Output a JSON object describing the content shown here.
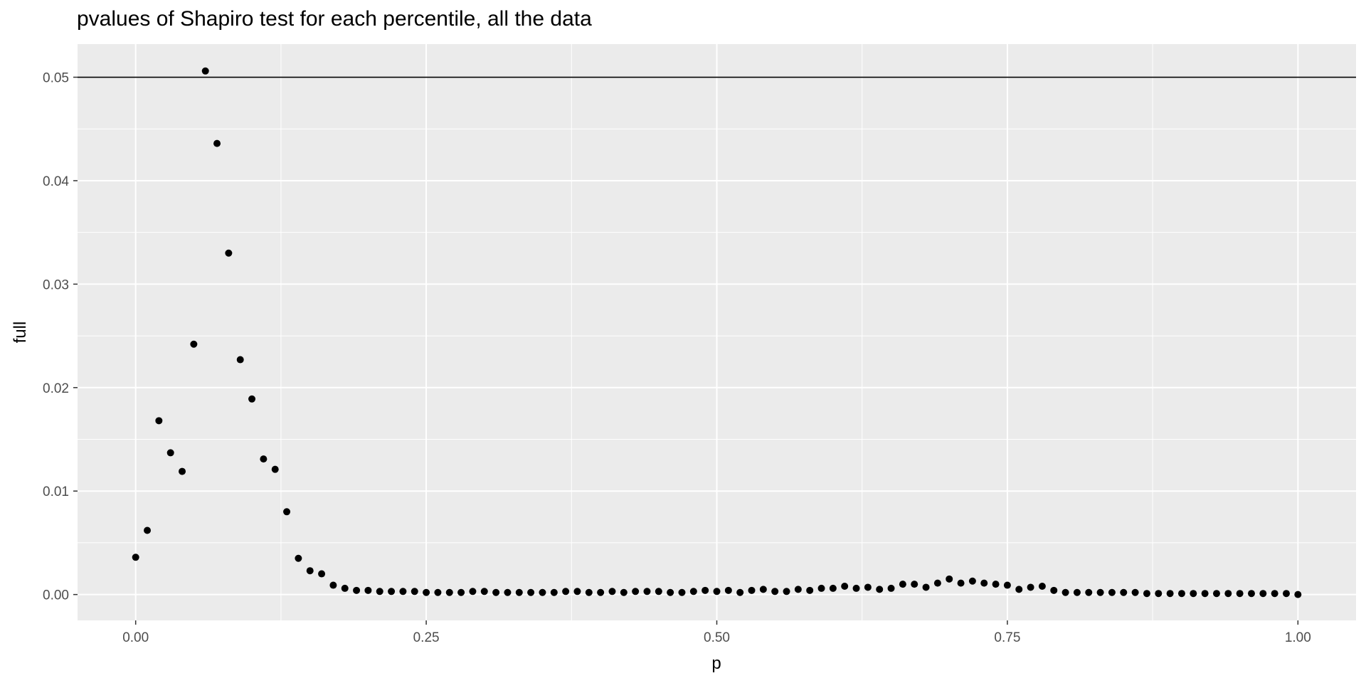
{
  "chart_data": {
    "type": "scatter",
    "title": "pvalues of Shapiro test for each percentile, all the data",
    "xlabel": "p",
    "ylabel": "full",
    "xlim": [
      -0.05,
      1.05
    ],
    "ylim": [
      -0.0025,
      0.0532
    ],
    "x_ticks": [
      0.0,
      0.25,
      0.5,
      0.75,
      1.0
    ],
    "x_tick_labels": [
      "0.00",
      "0.25",
      "0.50",
      "0.75",
      "1.00"
    ],
    "y_ticks": [
      0.0,
      0.01,
      0.02,
      0.03,
      0.04,
      0.05
    ],
    "y_tick_labels": [
      "0.00",
      "0.01",
      "0.02",
      "0.03",
      "0.04",
      "0.05"
    ],
    "reference_line": {
      "y": 0.05,
      "color": "#000000"
    },
    "grid": true,
    "panel_background": "#ebebeb",
    "gridline_color": "#ffffff",
    "point_color": "#000000",
    "x": [
      0.0,
      0.01,
      0.02,
      0.03,
      0.04,
      0.05,
      0.06,
      0.07,
      0.08,
      0.09,
      0.1,
      0.11,
      0.12,
      0.13,
      0.14,
      0.15,
      0.16,
      0.17,
      0.18,
      0.19,
      0.2,
      0.21,
      0.22,
      0.23,
      0.24,
      0.25,
      0.26,
      0.27,
      0.28,
      0.29,
      0.3,
      0.31,
      0.32,
      0.33,
      0.34,
      0.35,
      0.36,
      0.37,
      0.38,
      0.39,
      0.4,
      0.41,
      0.42,
      0.43,
      0.44,
      0.45,
      0.46,
      0.47,
      0.48,
      0.49,
      0.5,
      0.51,
      0.52,
      0.53,
      0.54,
      0.55,
      0.56,
      0.57,
      0.58,
      0.59,
      0.6,
      0.61,
      0.62,
      0.63,
      0.64,
      0.65,
      0.66,
      0.67,
      0.68,
      0.69,
      0.7,
      0.71,
      0.72,
      0.73,
      0.74,
      0.75,
      0.76,
      0.77,
      0.78,
      0.79,
      0.8,
      0.81,
      0.82,
      0.83,
      0.84,
      0.85,
      0.86,
      0.87,
      0.88,
      0.89,
      0.9,
      0.91,
      0.92,
      0.93,
      0.94,
      0.95,
      0.96,
      0.97,
      0.98,
      0.99,
      1.0
    ],
    "y": [
      0.0036,
      0.0062,
      0.0168,
      0.0137,
      0.0119,
      0.0242,
      0.0506,
      0.0436,
      0.033,
      0.0227,
      0.0189,
      0.0131,
      0.0121,
      0.008,
      0.0035,
      0.0023,
      0.002,
      0.0009,
      0.0006,
      0.0004,
      0.0004,
      0.0003,
      0.0003,
      0.0003,
      0.0003,
      0.0002,
      0.0002,
      0.0002,
      0.0002,
      0.0003,
      0.0003,
      0.0002,
      0.0002,
      0.0002,
      0.0002,
      0.0002,
      0.0002,
      0.0003,
      0.0003,
      0.0002,
      0.0002,
      0.0003,
      0.0002,
      0.0003,
      0.0003,
      0.0003,
      0.0002,
      0.0002,
      0.0003,
      0.0004,
      0.0003,
      0.0004,
      0.0002,
      0.0004,
      0.0005,
      0.0003,
      0.0003,
      0.0005,
      0.0004,
      0.0006,
      0.0006,
      0.0008,
      0.0006,
      0.0007,
      0.0005,
      0.0006,
      0.001,
      0.001,
      0.0007,
      0.0011,
      0.0015,
      0.0011,
      0.0013,
      0.0011,
      0.001,
      0.0009,
      0.0005,
      0.0007,
      0.0008,
      0.0004,
      0.0002,
      0.0002,
      0.0002,
      0.0002,
      0.0002,
      0.0002,
      0.0002,
      0.0001,
      0.0001,
      0.0001,
      0.0001,
      0.0001,
      0.0001,
      0.0001,
      0.0001,
      0.0001,
      0.0001,
      0.0001,
      0.0001,
      0.0001,
      0.0
    ]
  }
}
